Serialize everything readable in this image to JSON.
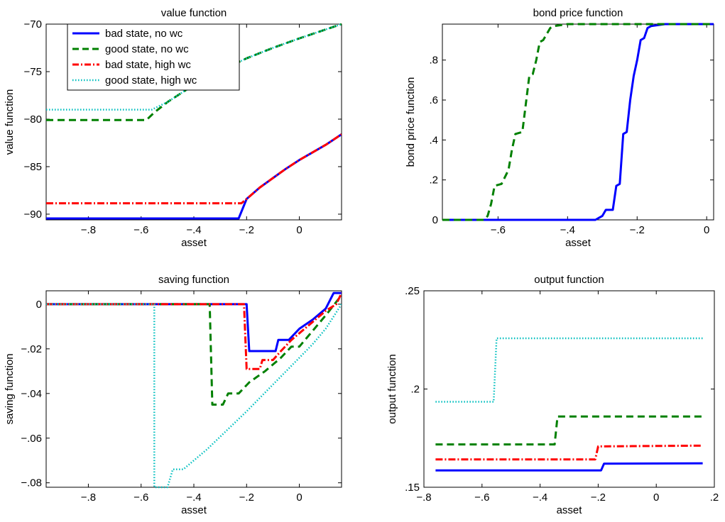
{
  "colors": {
    "bad_no_wc": "#0000ff",
    "good_no_wc": "#008000",
    "bad_high_wc": "#ff0000",
    "good_high_wc": "#00bfbf"
  },
  "legend_labels": [
    "bad state, no wc",
    "good state, no wc",
    "bad state, high wc",
    "good state, high wc"
  ],
  "chart_data": [
    {
      "type": "line",
      "title": "value function",
      "xlabel": "asset",
      "ylabel": "value function",
      "xlim": [
        -0.96,
        0.16
      ],
      "ylim": [
        -90.6,
        -70
      ],
      "xticks": [
        -0.8,
        -0.6,
        -0.4,
        -0.2,
        0
      ],
      "yticks": [
        -90,
        -85,
        -80,
        -75,
        -70
      ],
      "legend": "top-left",
      "series": [
        {
          "name": "bad state, no wc",
          "style": "solid",
          "color": "#0000ff",
          "points": [
            [
              -0.96,
              -90.45
            ],
            [
              -0.23,
              -90.45
            ],
            [
              -0.2,
              -88.4
            ],
            [
              -0.15,
              -87.2
            ],
            [
              -0.1,
              -86.2
            ],
            [
              -0.05,
              -85.2
            ],
            [
              0,
              -84.3
            ],
            [
              0.05,
              -83.5
            ],
            [
              0.1,
              -82.7
            ],
            [
              0.16,
              -81.6
            ]
          ]
        },
        {
          "name": "good state, no wc",
          "style": "dashed",
          "color": "#008000",
          "points": [
            [
              -0.96,
              -80.1
            ],
            [
              -0.58,
              -80.1
            ],
            [
              -0.55,
              -79.3
            ],
            [
              -0.5,
              -78.2
            ],
            [
              -0.4,
              -76.4
            ],
            [
              -0.3,
              -74.9
            ],
            [
              -0.2,
              -73.6
            ],
            [
              -0.1,
              -72.5
            ],
            [
              0,
              -71.5
            ],
            [
              0.16,
              -70.0
            ]
          ]
        },
        {
          "name": "bad state, high wc",
          "style": "dashdot",
          "color": "#ff0000",
          "points": [
            [
              -0.96,
              -88.85
            ],
            [
              -0.22,
              -88.85
            ],
            [
              -0.2,
              -88.4
            ],
            [
              -0.15,
              -87.2
            ],
            [
              -0.1,
              -86.2
            ],
            [
              -0.05,
              -85.2
            ],
            [
              0,
              -84.3
            ],
            [
              0.05,
              -83.5
            ],
            [
              0.1,
              -82.7
            ],
            [
              0.16,
              -81.6
            ]
          ]
        },
        {
          "name": "good state, high wc",
          "style": "dotted",
          "color": "#00bfbf",
          "points": [
            [
              -0.96,
              -79.0
            ],
            [
              -0.56,
              -79.0
            ],
            [
              -0.5,
              -78.2
            ],
            [
              -0.4,
              -76.4
            ],
            [
              -0.3,
              -74.9
            ],
            [
              -0.2,
              -73.6
            ],
            [
              -0.1,
              -72.5
            ],
            [
              0,
              -71.5
            ],
            [
              0.16,
              -70.0
            ]
          ]
        }
      ]
    },
    {
      "type": "line",
      "title": "bond price function",
      "xlabel": "asset",
      "ylabel": "bond price function",
      "xlim": [
        -0.76,
        0.02
      ],
      "ylim": [
        0,
        0.98
      ],
      "xticks": [
        -0.6,
        -0.4,
        -0.2,
        0
      ],
      "yticks": [
        0,
        0.2,
        0.4,
        0.6,
        0.8
      ],
      "series": [
        {
          "name": "bad state, no wc",
          "style": "solid",
          "color": "#0000ff",
          "points": [
            [
              -0.76,
              0
            ],
            [
              -0.32,
              0
            ],
            [
              -0.31,
              0.01
            ],
            [
              -0.3,
              0.02
            ],
            [
              -0.29,
              0.05
            ],
            [
              -0.27,
              0.05
            ],
            [
              -0.26,
              0.17
            ],
            [
              -0.25,
              0.18
            ],
            [
              -0.24,
              0.43
            ],
            [
              -0.23,
              0.44
            ],
            [
              -0.22,
              0.6
            ],
            [
              -0.21,
              0.72
            ],
            [
              -0.2,
              0.8
            ],
            [
              -0.19,
              0.9
            ],
            [
              -0.18,
              0.91
            ],
            [
              -0.17,
              0.96
            ],
            [
              -0.16,
              0.97
            ],
            [
              -0.12,
              0.98
            ],
            [
              0.02,
              0.98
            ]
          ]
        },
        {
          "name": "good state, no wc",
          "style": "dashed",
          "color": "#008000",
          "points": [
            [
              -0.76,
              0
            ],
            [
              -0.64,
              0
            ],
            [
              -0.63,
              0.02
            ],
            [
              -0.62,
              0.08
            ],
            [
              -0.61,
              0.17
            ],
            [
              -0.59,
              0.18
            ],
            [
              -0.57,
              0.25
            ],
            [
              -0.56,
              0.35
            ],
            [
              -0.55,
              0.43
            ],
            [
              -0.53,
              0.44
            ],
            [
              -0.52,
              0.58
            ],
            [
              -0.51,
              0.72
            ],
            [
              -0.5,
              0.73
            ],
            [
              -0.49,
              0.8
            ],
            [
              -0.48,
              0.89
            ],
            [
              -0.47,
              0.9
            ],
            [
              -0.46,
              0.93
            ],
            [
              -0.45,
              0.96
            ],
            [
              -0.44,
              0.97
            ],
            [
              -0.4,
              0.98
            ],
            [
              0.02,
              0.98
            ]
          ]
        }
      ]
    },
    {
      "type": "line",
      "title": "saving function",
      "xlabel": "asset",
      "ylabel": "saving function",
      "xlim": [
        -0.96,
        0.16
      ],
      "ylim": [
        -0.082,
        0.006
      ],
      "xticks": [
        -0.8,
        -0.6,
        -0.4,
        -0.2,
        0
      ],
      "yticks": [
        -0.08,
        -0.06,
        -0.04,
        -0.02,
        0
      ],
      "series": [
        {
          "name": "bad state, no wc",
          "style": "solid",
          "color": "#0000ff",
          "points": [
            [
              -0.96,
              0
            ],
            [
              -0.2,
              0
            ],
            [
              -0.19,
              -0.021
            ],
            [
              -0.09,
              -0.021
            ],
            [
              -0.08,
              -0.016
            ],
            [
              -0.04,
              -0.016
            ],
            [
              0,
              -0.011
            ],
            [
              0.05,
              -0.007
            ],
            [
              0.1,
              -0.002
            ],
            [
              0.13,
              0.005
            ],
            [
              0.16,
              0.005
            ]
          ]
        },
        {
          "name": "good state, no wc",
          "style": "dashed",
          "color": "#008000",
          "points": [
            [
              -0.96,
              0
            ],
            [
              -0.34,
              0
            ],
            [
              -0.33,
              -0.045
            ],
            [
              -0.29,
              -0.045
            ],
            [
              -0.27,
              -0.04
            ],
            [
              -0.23,
              -0.04
            ],
            [
              -0.19,
              -0.035
            ],
            [
              -0.13,
              -0.03
            ],
            [
              -0.07,
              -0.024
            ],
            [
              -0.03,
              -0.019
            ],
            [
              0,
              -0.019
            ],
            [
              0.05,
              -0.012
            ],
            [
              0.1,
              -0.005
            ],
            [
              0.16,
              0.004
            ]
          ]
        },
        {
          "name": "bad state, high wc",
          "style": "dashdot",
          "color": "#ff0000",
          "points": [
            [
              -0.96,
              0
            ],
            [
              -0.21,
              0
            ],
            [
              -0.2,
              -0.029
            ],
            [
              -0.15,
              -0.029
            ],
            [
              -0.14,
              -0.025
            ],
            [
              -0.1,
              -0.025
            ],
            [
              -0.07,
              -0.021
            ],
            [
              -0.03,
              -0.016
            ],
            [
              0,
              -0.013
            ],
            [
              0.05,
              -0.008
            ],
            [
              0.1,
              -0.003
            ],
            [
              0.14,
              0.0
            ],
            [
              0.16,
              0.005
            ]
          ]
        },
        {
          "name": "good state, high wc",
          "style": "dotted",
          "color": "#00bfbf",
          "points": [
            [
              -0.96,
              0
            ],
            [
              -0.55,
              0
            ],
            [
              -0.55,
              -0.082
            ],
            [
              -0.5,
              -0.082
            ],
            [
              -0.48,
              -0.074
            ],
            [
              -0.44,
              -0.074
            ],
            [
              -0.35,
              -0.065
            ],
            [
              -0.2,
              -0.048
            ],
            [
              -0.1,
              -0.036
            ],
            [
              0,
              -0.024
            ],
            [
              0.05,
              -0.018
            ],
            [
              0.1,
              -0.011
            ],
            [
              0.16,
              0.0
            ]
          ]
        }
      ]
    },
    {
      "type": "line",
      "title": "output function",
      "xlabel": "asset",
      "ylabel": "output function",
      "xlim": [
        -0.8,
        0.2
      ],
      "ylim": [
        0.15,
        0.25
      ],
      "xticks": [
        -0.8,
        -0.6,
        -0.4,
        -0.2,
        0,
        0.2
      ],
      "yticks": [
        0.15,
        0.2,
        0.25
      ],
      "series": [
        {
          "name": "bad state, no wc",
          "style": "solid",
          "color": "#0000ff",
          "points": [
            [
              -0.76,
              0.1586
            ],
            [
              -0.19,
              0.1586
            ],
            [
              -0.18,
              0.162
            ],
            [
              0.16,
              0.1622
            ]
          ]
        },
        {
          "name": "good state, no wc",
          "style": "dashed",
          "color": "#008000",
          "points": [
            [
              -0.76,
              0.1718
            ],
            [
              -0.35,
              0.1718
            ],
            [
              -0.34,
              0.186
            ],
            [
              0.16,
              0.186
            ]
          ]
        },
        {
          "name": "bad state, high wc",
          "style": "dashdot",
          "color": "#ff0000",
          "points": [
            [
              -0.76,
              0.1642
            ],
            [
              -0.21,
              0.1642
            ],
            [
              -0.2,
              0.1708
            ],
            [
              0.16,
              0.1712
            ]
          ]
        },
        {
          "name": "good state, high wc",
          "style": "dotted",
          "color": "#00bfbf",
          "points": [
            [
              -0.76,
              0.1935
            ],
            [
              -0.56,
              0.1935
            ],
            [
              -0.55,
              0.2258
            ],
            [
              0.16,
              0.2258
            ]
          ]
        }
      ]
    }
  ]
}
